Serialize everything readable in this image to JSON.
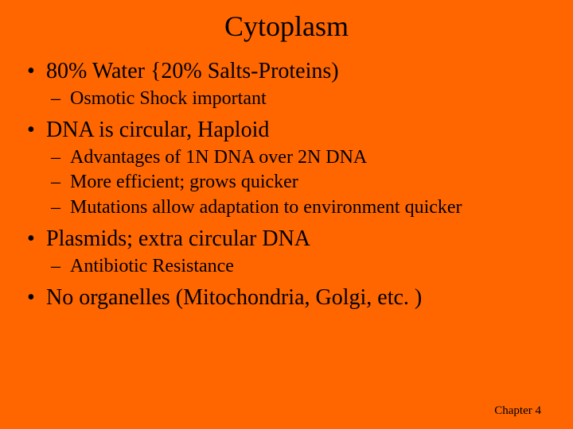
{
  "colors": {
    "background": "#ff6600",
    "text": "#000000"
  },
  "typography": {
    "title_fontsize": 36,
    "level1_fontsize": 28,
    "level2_fontsize": 24,
    "footer_fontsize": 15,
    "font_family": "Times New Roman"
  },
  "title": "Cytoplasm",
  "bullets": [
    {
      "text": "80% Water {20% Salts-Proteins)",
      "sub": [
        "Osmotic Shock important"
      ]
    },
    {
      "text": "DNA is circular, Haploid",
      "sub": [
        "Advantages of 1N DNA over 2N DNA",
        "More efficient; grows quicker",
        "Mutations allow adaptation to environment quicker"
      ]
    },
    {
      "text": "Plasmids; extra circular DNA",
      "sub": [
        "Antibiotic Resistance"
      ]
    },
    {
      "text": "No organelles (Mitochondria, Golgi, etc. )",
      "sub": []
    }
  ],
  "footer": "Chapter 4"
}
